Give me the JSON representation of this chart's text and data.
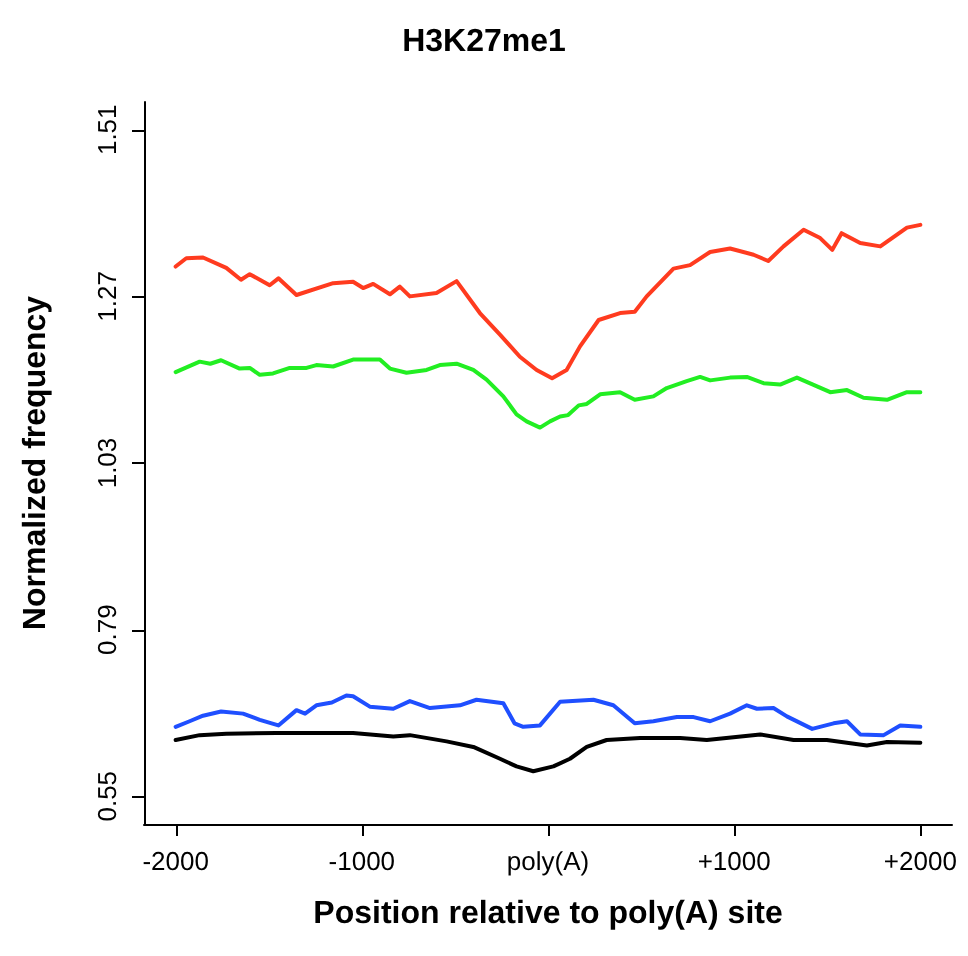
{
  "chart_data": {
    "type": "line",
    "title": "H3K27me1",
    "xlabel": "Position relative to poly(A) site",
    "ylabel": "Normalized frequency",
    "xlim": [
      -2170,
      2170
    ],
    "ylim": [
      0.51,
      1.55
    ],
    "xticks": [
      -2000,
      -1000,
      {
        "value": 0,
        "label": "poly(A)"
      },
      {
        "value": 1000,
        "label": "+1000"
      },
      {
        "value": 2000,
        "label": "+2000"
      }
    ],
    "yticks": [
      0.55,
      0.79,
      1.03,
      1.27,
      1.51
    ],
    "grid": false,
    "marker": "none",
    "line_style": "solid",
    "series": [
      {
        "color": "#ff3b1f",
        "x": [
          -2000,
          -1943,
          -1853,
          -1728,
          -1649,
          -1602,
          -1495,
          -1448,
          -1351,
          -1154,
          -1047,
          -993,
          -939,
          -849,
          -796,
          -742,
          -599,
          -491,
          -366,
          -258,
          -151,
          -61,
          22,
          100,
          172,
          272,
          387,
          466,
          530,
          674,
          763,
          871,
          978,
          1104,
          1183,
          1265,
          1373,
          1462,
          1527,
          1577,
          1677,
          1785,
          1928,
          2000
        ],
        "values": [
          1.313,
          1.325,
          1.326,
          1.311,
          1.294,
          1.302,
          1.286,
          1.296,
          1.272,
          1.289,
          1.291,
          1.282,
          1.288,
          1.273,
          1.284,
          1.27,
          1.275,
          1.292,
          1.246,
          1.215,
          1.183,
          1.164,
          1.152,
          1.164,
          1.198,
          1.236,
          1.246,
          1.248,
          1.27,
          1.31,
          1.315,
          1.334,
          1.339,
          1.33,
          1.321,
          1.342,
          1.366,
          1.354,
          1.337,
          1.361,
          1.347,
          1.342,
          1.369,
          1.373
        ]
      },
      {
        "color": "#22ee22",
        "x": [
          -2000,
          -1871,
          -1814,
          -1756,
          -1656,
          -1602,
          -1548,
          -1477,
          -1387,
          -1297,
          -1244,
          -1154,
          -1047,
          -903,
          -849,
          -760,
          -652,
          -581,
          -491,
          -401,
          -330,
          -240,
          -169,
          -115,
          -43,
          11,
          65,
          108,
          165,
          208,
          280,
          387,
          466,
          566,
          638,
          745,
          817,
          871,
          978,
          1068,
          1158,
          1247,
          1337,
          1516,
          1606,
          1695,
          1821,
          1928,
          2000
        ],
        "values": [
          1.161,
          1.176,
          1.173,
          1.178,
          1.166,
          1.167,
          1.157,
          1.159,
          1.167,
          1.167,
          1.171,
          1.169,
          1.179,
          1.179,
          1.166,
          1.16,
          1.164,
          1.171,
          1.173,
          1.164,
          1.15,
          1.126,
          1.1,
          1.09,
          1.081,
          1.09,
          1.097,
          1.099,
          1.113,
          1.115,
          1.129,
          1.132,
          1.121,
          1.126,
          1.138,
          1.148,
          1.154,
          1.149,
          1.153,
          1.154,
          1.145,
          1.143,
          1.153,
          1.132,
          1.135,
          1.124,
          1.121,
          1.132,
          1.132
        ]
      },
      {
        "color": "#1f4fff",
        "x": [
          -2000,
          -1925,
          -1853,
          -1756,
          -1638,
          -1548,
          -1448,
          -1351,
          -1305,
          -1244,
          -1161,
          -1083,
          -1047,
          -957,
          -831,
          -742,
          -634,
          -473,
          -384,
          -240,
          -180,
          -133,
          -43,
          65,
          244,
          351,
          466,
          566,
          692,
          782,
          871,
          978,
          1068,
          1122,
          1211,
          1283,
          1419,
          1534,
          1606,
          1677,
          1803,
          1892,
          2000
        ],
        "values": [
          0.65,
          0.658,
          0.666,
          0.672,
          0.669,
          0.66,
          0.652,
          0.674,
          0.669,
          0.681,
          0.685,
          0.695,
          0.694,
          0.679,
          0.676,
          0.687,
          0.677,
          0.681,
          0.689,
          0.684,
          0.655,
          0.65,
          0.652,
          0.686,
          0.689,
          0.681,
          0.655,
          0.658,
          0.664,
          0.664,
          0.658,
          0.669,
          0.681,
          0.676,
          0.677,
          0.665,
          0.647,
          0.655,
          0.658,
          0.639,
          0.638,
          0.652,
          0.65
        ]
      },
      {
        "color": "#000000",
        "x": [
          -2000,
          -1871,
          -1728,
          -1459,
          -1047,
          -831,
          -742,
          -545,
          -401,
          -258,
          -169,
          -79,
          29,
          118,
          208,
          315,
          495,
          710,
          853,
          1140,
          1319,
          1498,
          1713,
          1821,
          2000
        ],
        "values": [
          0.631,
          0.638,
          0.64,
          0.641,
          0.641,
          0.636,
          0.638,
          0.629,
          0.621,
          0.604,
          0.593,
          0.586,
          0.593,
          0.604,
          0.621,
          0.631,
          0.634,
          0.634,
          0.631,
          0.639,
          0.631,
          0.631,
          0.623,
          0.628,
          0.627
        ]
      }
    ]
  }
}
